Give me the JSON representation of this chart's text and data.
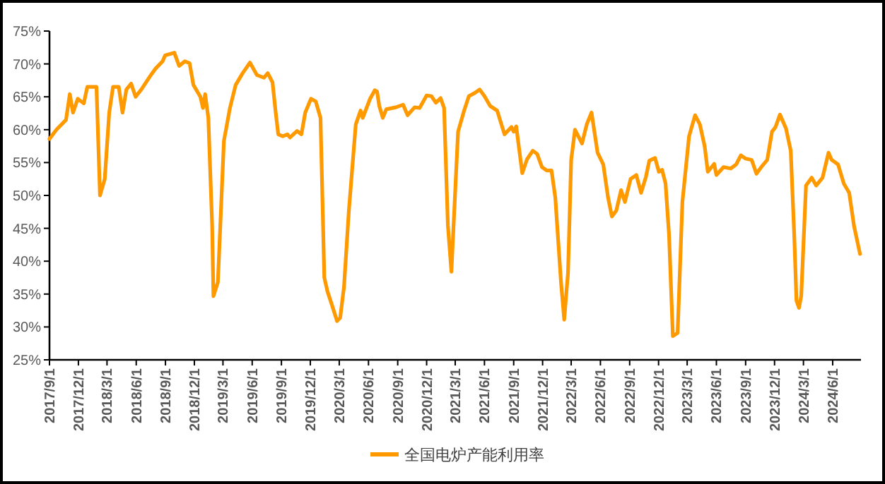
{
  "chart_data": {
    "type": "line",
    "legend": "bottom",
    "grid": false,
    "marker": "none",
    "line_style": "solid",
    "xlim": [
      "2017-09-01",
      "2024-08-29"
    ],
    "xticks": [
      {
        "value": "2017-09-01",
        "label": "2017/9/1"
      },
      {
        "value": "2017-12-01",
        "label": "2017/12/1"
      },
      {
        "value": "2018-03-01",
        "label": "2018/3/1"
      },
      {
        "value": "2018-06-01",
        "label": "2018/6/1"
      },
      {
        "value": "2018-09-01",
        "label": "2018/9/1"
      },
      {
        "value": "2018-12-01",
        "label": "2018/12/1"
      },
      {
        "value": "2019-03-01",
        "label": "2019/3/1"
      },
      {
        "value": "2019-06-01",
        "label": "2019/6/1"
      },
      {
        "value": "2019-09-01",
        "label": "2019/9/1"
      },
      {
        "value": "2019-12-01",
        "label": "2019/12/1"
      },
      {
        "value": "2020-03-01",
        "label": "2020/3/1"
      },
      {
        "value": "2020-06-01",
        "label": "2020/6/1"
      },
      {
        "value": "2020-09-01",
        "label": "2020/9/1"
      },
      {
        "value": "2020-12-01",
        "label": "2020/12/1"
      },
      {
        "value": "2021-03-01",
        "label": "2021/3/1"
      },
      {
        "value": "2021-06-01",
        "label": "2021/6/1"
      },
      {
        "value": "2021-09-01",
        "label": "2021/9/1"
      },
      {
        "value": "2021-12-01",
        "label": "2021/12/1"
      },
      {
        "value": "2022-03-01",
        "label": "2022/3/1"
      },
      {
        "value": "2022-06-01",
        "label": "2022/6/1"
      },
      {
        "value": "2022-09-01",
        "label": "2022/9/1"
      },
      {
        "value": "2022-12-01",
        "label": "2022/12/1"
      },
      {
        "value": "2023-03-01",
        "label": "2023/3/1"
      },
      {
        "value": "2023-06-01",
        "label": "2023/6/1"
      },
      {
        "value": "2023-09-01",
        "label": "2023/9/1"
      },
      {
        "value": "2023-12-01",
        "label": "2023/12/1"
      },
      {
        "value": "2024-03-01",
        "label": "2024/3/1"
      },
      {
        "value": "2024-06-01",
        "label": "2024/6/1"
      }
    ],
    "ylim": [
      25,
      75
    ],
    "yticks": [
      {
        "value": 25,
        "label": "25%"
      },
      {
        "value": 30,
        "label": "30%"
      },
      {
        "value": 35,
        "label": "35%"
      },
      {
        "value": 40,
        "label": "40%"
      },
      {
        "value": 45,
        "label": "45%"
      },
      {
        "value": 50,
        "label": "50%"
      },
      {
        "value": 55,
        "label": "55%"
      },
      {
        "value": 60,
        "label": "60%"
      },
      {
        "value": 65,
        "label": "65%"
      },
      {
        "value": 70,
        "label": "70%"
      },
      {
        "value": 75,
        "label": "75%"
      }
    ],
    "series": [
      {
        "name": "全国电炉产能利用率",
        "color": "#ff9900",
        "x": [
          "2017-09-01",
          "2017-09-23",
          "2017-10-23",
          "2017-11-04",
          "2017-11-14",
          "2017-11-29",
          "2017-12-18",
          "2017-12-29",
          "2018-01-27",
          "2018-02-07",
          "2018-02-22",
          "2018-03-08",
          "2018-03-20",
          "2018-04-07",
          "2018-04-19",
          "2018-05-01",
          "2018-05-16",
          "2018-05-30",
          "2018-06-17",
          "2018-07-17",
          "2018-08-01",
          "2018-08-23",
          "2018-08-31",
          "2018-09-29",
          "2018-10-14",
          "2018-11-01",
          "2018-11-16",
          "2018-11-28",
          "2018-12-20",
          "2018-12-28",
          "2019-01-04",
          "2019-01-14",
          "2019-01-26",
          "2019-01-30",
          "2019-02-13",
          "2019-03-04",
          "2019-03-23",
          "2019-04-10",
          "2019-05-02",
          "2019-05-25",
          "2019-06-16",
          "2019-07-08",
          "2019-07-20",
          "2019-08-04",
          "2019-08-14",
          "2019-08-22",
          "2019-09-05",
          "2019-09-20",
          "2019-09-28",
          "2019-10-20",
          "2019-11-03",
          "2019-11-15",
          "2019-12-03",
          "2019-12-18",
          "2020-01-02",
          "2020-01-14",
          "2020-01-24",
          "2020-02-08",
          "2020-02-23",
          "2020-03-04",
          "2020-03-16",
          "2020-03-31",
          "2020-04-22",
          "2020-05-07",
          "2020-05-14",
          "2020-06-06",
          "2020-06-21",
          "2020-06-28",
          "2020-07-05",
          "2020-07-16",
          "2020-07-27",
          "2020-08-26",
          "2020-09-18",
          "2020-10-02",
          "2020-10-24",
          "2020-11-09",
          "2020-12-01",
          "2020-12-16",
          "2020-12-30",
          "2021-01-14",
          "2021-01-25",
          "2021-02-06",
          "2021-02-17",
          "2021-02-28",
          "2021-03-10",
          "2021-03-29",
          "2021-04-13",
          "2021-05-02",
          "2021-05-17",
          "2021-06-01",
          "2021-06-19",
          "2021-07-11",
          "2021-08-03",
          "2021-08-25",
          "2021-09-01",
          "2021-09-09",
          "2021-09-28",
          "2021-10-13",
          "2021-10-31",
          "2021-11-14",
          "2021-11-29",
          "2021-12-14",
          "2021-12-29",
          "2022-01-10",
          "2022-01-28",
          "2022-02-07",
          "2022-02-19",
          "2022-03-01",
          "2022-03-13",
          "2022-04-04",
          "2022-04-19",
          "2022-05-04",
          "2022-05-23",
          "2022-06-10",
          "2022-06-25",
          "2022-07-07",
          "2022-07-21",
          "2022-08-05",
          "2022-08-17",
          "2022-09-04",
          "2022-09-22",
          "2022-10-07",
          "2022-10-22",
          "2022-11-02",
          "2022-11-20",
          "2022-12-02",
          "2022-12-12",
          "2022-12-23",
          "2023-01-03",
          "2023-01-15",
          "2023-01-30",
          "2023-02-14",
          "2023-03-07",
          "2023-03-26",
          "2023-04-10",
          "2023-04-25",
          "2023-05-05",
          "2023-05-25",
          "2023-06-01",
          "2023-06-23",
          "2023-07-16",
          "2023-08-02",
          "2023-08-17",
          "2023-09-01",
          "2023-09-20",
          "2023-10-05",
          "2023-10-20",
          "2023-11-08",
          "2023-11-23",
          "2023-12-04",
          "2023-12-18",
          "2024-01-06",
          "2024-01-21",
          "2024-02-01",
          "2024-02-08",
          "2024-02-16",
          "2024-02-23",
          "2024-03-09",
          "2024-03-27",
          "2024-04-10",
          "2024-04-30",
          "2024-05-19",
          "2024-05-29",
          "2024-06-18",
          "2024-07-06",
          "2024-07-23",
          "2024-08-07",
          "2024-08-26"
        ],
        "values": [
          58.6,
          60.0,
          61.5,
          65.4,
          62.6,
          64.7,
          64.0,
          66.5,
          66.5,
          50.0,
          52.5,
          62.6,
          66.5,
          66.5,
          62.6,
          66.1,
          67.0,
          65.0,
          66.1,
          68.3,
          69.3,
          70.4,
          71.3,
          71.7,
          69.7,
          70.4,
          70.1,
          66.8,
          65.0,
          63.3,
          65.4,
          61.8,
          45.4,
          34.7,
          36.8,
          58.3,
          63.3,
          66.8,
          68.6,
          70.2,
          68.3,
          67.9,
          68.6,
          67.2,
          62.6,
          59.3,
          59.0,
          59.3,
          58.8,
          59.8,
          59.3,
          62.6,
          64.7,
          64.3,
          61.8,
          37.5,
          35.4,
          33.2,
          30.9,
          31.4,
          36.1,
          47.5,
          60.8,
          62.9,
          61.8,
          64.7,
          66.0,
          65.8,
          63.6,
          61.8,
          63.1,
          63.4,
          63.8,
          62.2,
          63.4,
          63.3,
          65.2,
          65.1,
          64.1,
          64.8,
          63.3,
          45.4,
          38.4,
          49.7,
          59.7,
          62.9,
          65.1,
          65.6,
          66.1,
          65.1,
          63.6,
          62.9,
          59.3,
          60.4,
          59.7,
          60.5,
          53.4,
          55.5,
          56.8,
          56.3,
          54.3,
          53.8,
          53.8,
          49.7,
          36.8,
          31.1,
          38.2,
          55.4,
          60.0,
          57.9,
          60.8,
          62.6,
          56.5,
          54.7,
          49.7,
          46.8,
          47.7,
          50.8,
          49.0,
          52.5,
          53.1,
          50.4,
          52.8,
          55.3,
          55.7,
          53.6,
          53.9,
          51.8,
          44.0,
          28.6,
          29.1,
          49.0,
          59.0,
          62.2,
          60.8,
          57.5,
          53.6,
          54.8,
          53.1,
          54.3,
          54.1,
          54.7,
          56.1,
          55.6,
          55.4,
          53.3,
          54.3,
          55.4,
          59.7,
          60.4,
          62.3,
          60.2,
          56.8,
          44.0,
          34.0,
          32.9,
          34.7,
          51.5,
          52.7,
          51.5,
          52.7,
          56.5,
          55.4,
          54.7,
          51.8,
          50.4,
          45.4,
          41.1
        ]
      }
    ]
  }
}
